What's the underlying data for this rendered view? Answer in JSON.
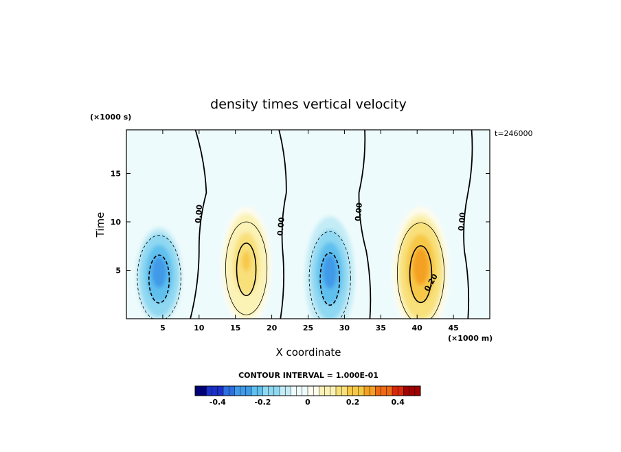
{
  "chart_data": {
    "type": "heatmap",
    "title": "density times vertical velocity",
    "xlabel": "X coordinate",
    "ylabel": "Time",
    "x_unit": "(×1000 m)",
    "y_unit": "(×1000 s)",
    "run_label": "t=246000",
    "xlim": [
      0,
      50
    ],
    "ylim": [
      0,
      19.5
    ],
    "x_ticks": [
      5,
      10,
      15,
      20,
      25,
      30,
      35,
      40,
      45
    ],
    "y_ticks": [
      5,
      10,
      15
    ],
    "contour_interval_text": "CONTOUR INTERVAL = 1.000E-01",
    "zero_contour_labels": [
      "0.00",
      "0.00",
      "0.00",
      "0.00"
    ],
    "positive_contour_label": "0.20",
    "colorbar": {
      "range": [
        -0.5,
        0.5
      ],
      "ticks": [
        {
          "value": -0.4,
          "label": "-0.4"
        },
        {
          "value": -0.2,
          "label": "-0.2"
        },
        {
          "value": 0,
          "label": "0"
        },
        {
          "value": 0.2,
          "label": "0.2"
        },
        {
          "value": 0.4,
          "label": "0.4"
        }
      ],
      "colors": [
        "#00007a",
        "#1a30c8",
        "#2c6fe0",
        "#3f9ae8",
        "#5fc0ee",
        "#8fd8f2",
        "#c4ecf6",
        "#eefbfc",
        "#fefcee",
        "#fbf2b6",
        "#f8e07a",
        "#f7c846",
        "#f4a024",
        "#ee6a14",
        "#d8280c",
        "#a00000"
      ]
    },
    "cells": [
      {
        "name": "negative-cell-1",
        "x": 4.5,
        "y": 4.5,
        "sx": 4.0,
        "sy": 5.5,
        "amp": -0.3
      },
      {
        "name": "positive-cell-1",
        "x": 16.5,
        "y": 5.5,
        "sx": 3.8,
        "sy": 6.0,
        "amp": 0.22
      },
      {
        "name": "negative-cell-2",
        "x": 28.0,
        "y": 4.5,
        "sx": 3.8,
        "sy": 6.0,
        "amp": -0.32
      },
      {
        "name": "positive-cell-2",
        "x": 40.5,
        "y": 5.0,
        "sx": 4.3,
        "sy": 6.5,
        "amp": 0.3
      }
    ]
  }
}
